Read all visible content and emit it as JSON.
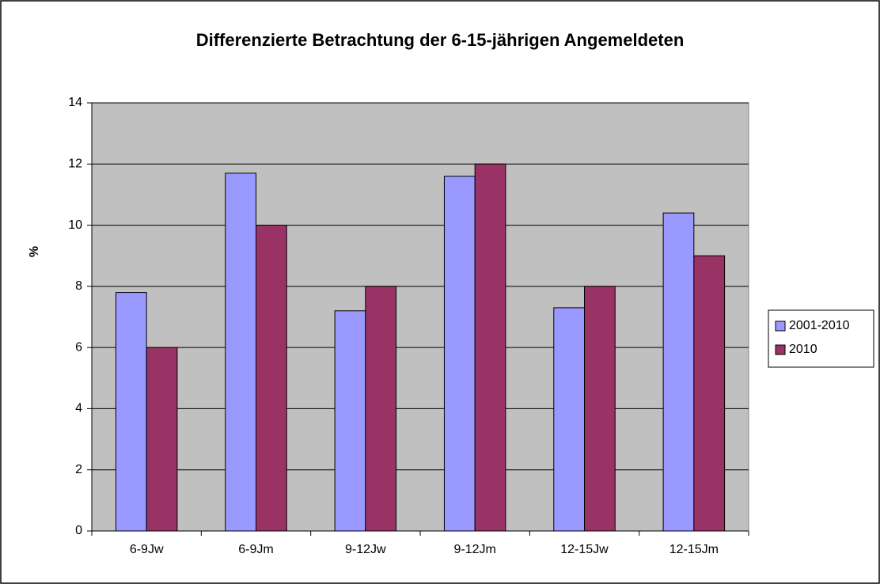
{
  "chart_data": {
    "type": "bar",
    "title": "Differenzierte Betrachtung der 6-15-jährigen Angemeldeten",
    "y_label": "%",
    "categories": [
      "6-9Jw",
      "6-9Jm",
      "9-12Jw",
      "9-12Jm",
      "12-15Jw",
      "12-15Jm"
    ],
    "series": [
      {
        "name": "2001-2010",
        "color": "#9999ff",
        "values": [
          7.8,
          11.7,
          7.2,
          11.6,
          7.3,
          10.4
        ]
      },
      {
        "name": "2010",
        "color": "#993366",
        "values": [
          6,
          10,
          8,
          12,
          8,
          9
        ]
      }
    ],
    "ylim": [
      0,
      14
    ],
    "yticks": [
      0,
      2,
      4,
      6,
      8,
      10,
      12,
      14
    ],
    "grid": true,
    "legend": "right"
  }
}
